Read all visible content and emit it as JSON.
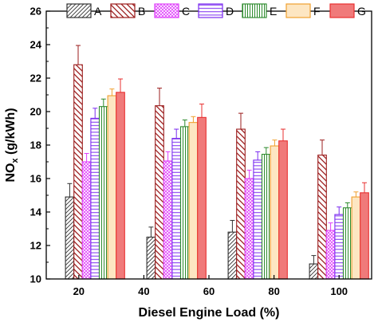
{
  "chart_data": {
    "type": "bar",
    "xlabel": "Diesel Engine Load (%)",
    "ylabel_main": "NO",
    "ylabel_sub": "x",
    "ylabel_rest": " (g/kWh)",
    "ylim": [
      10,
      26
    ],
    "yticks": [
      "10",
      "12",
      "14",
      "16",
      "18",
      "20",
      "22",
      "24",
      "26"
    ],
    "xlim": [
      10,
      110
    ],
    "xticks": [
      "20",
      "40",
      "60",
      "80",
      "100"
    ],
    "group_centers": [
      25,
      50,
      75,
      100
    ],
    "legend_position": "top",
    "series": [
      {
        "name": "A",
        "values": [
          14.9,
          12.5,
          12.8,
          10.9
        ],
        "errors": [
          0.8,
          0.6,
          0.7,
          0.5
        ],
        "color": "#333333",
        "pattern": "diag-right"
      },
      {
        "name": "B",
        "values": [
          22.8,
          20.35,
          18.95,
          17.4
        ],
        "errors": [
          1.15,
          1.05,
          0.95,
          0.9
        ],
        "color": "#9b1c1c",
        "pattern": "diag-left"
      },
      {
        "name": "C",
        "values": [
          17.0,
          17.05,
          16.0,
          12.9
        ],
        "errors": [
          0.5,
          0.55,
          0.5,
          0.45
        ],
        "color": "#e040fb",
        "pattern": "cross"
      },
      {
        "name": "D",
        "values": [
          19.6,
          18.4,
          17.1,
          13.85
        ],
        "errors": [
          0.6,
          0.55,
          0.5,
          0.45
        ],
        "color": "#7b2cf0",
        "pattern": "horizontal"
      },
      {
        "name": "E",
        "values": [
          20.3,
          19.1,
          17.45,
          14.25
        ],
        "errors": [
          0.45,
          0.4,
          0.4,
          0.3
        ],
        "color": "#2e8b2e",
        "pattern": "vertical"
      },
      {
        "name": "F",
        "values": [
          20.95,
          19.35,
          17.95,
          14.9
        ],
        "errors": [
          0.4,
          0.35,
          0.35,
          0.3
        ],
        "color": "#f0a030",
        "pattern": "fill-light"
      },
      {
        "name": "G",
        "values": [
          21.15,
          19.65,
          18.25,
          15.15
        ],
        "errors": [
          0.8,
          0.8,
          0.7,
          0.6
        ],
        "color": "#e83030",
        "pattern": "fill-red"
      }
    ]
  }
}
